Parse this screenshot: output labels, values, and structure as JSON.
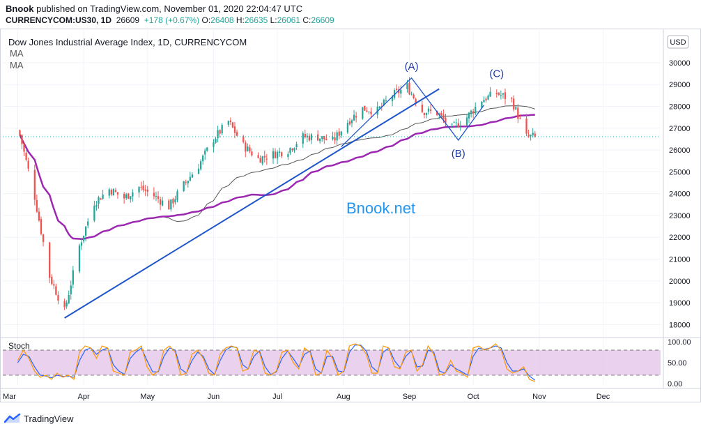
{
  "header": {
    "publisher": "Bnook",
    "published_text": "published on TradingView.com, November 01, 2020 22:04:47 UTC",
    "symbol": "CURRENCYCOM:US30, 1D",
    "price": "26609",
    "change": "+178 (+0.67%)",
    "ohlc": [
      {
        "label": "O:",
        "value": "26408"
      },
      {
        "label": "H:",
        "value": "26635"
      },
      {
        "label": "L:",
        "value": "26061"
      },
      {
        "label": "C:",
        "value": "26609"
      }
    ]
  },
  "legend": {
    "title": "Dow Jones Industrial Average Index, 1D, CURRENCYCOM",
    "ma1": "MA",
    "ma2": "MA"
  },
  "currency_badge": "USD",
  "watermark": "Bnook.net",
  "colors": {
    "up": "#26a69a",
    "down": "#ef5350",
    "trendline": "#1e55c8",
    "ma_fast": "#555555",
    "ma_slow": "#9c27b0",
    "stoch_k": "#2962ff",
    "stoch_d": "#ff9800",
    "stoch_band": "#e1bee7",
    "price_line": "#26a69a"
  },
  "footer": {
    "brand": "TradingView"
  },
  "chart_data": [
    {
      "type": "candlestick",
      "title": "Dow Jones Industrial Average Index, 1D, CURRENCYCOM",
      "y_axis_labels": [
        "18000",
        "19000",
        "20000",
        "21000",
        "22000",
        "23000",
        "24000",
        "25000",
        "26000",
        "27000",
        "28000",
        "29000",
        "30000"
      ],
      "ylim": [
        17500,
        31500
      ],
      "x_axis_labels": [
        "Mar",
        "Apr",
        "May",
        "Jun",
        "Jul",
        "Aug",
        "Sep",
        "Oct",
        "Nov",
        "Dec"
      ],
      "last_price": 26609,
      "close_series_approx": [
        {
          "date": "2020-03-02",
          "close": 26700
        },
        {
          "date": "2020-03-09",
          "close": 23850
        },
        {
          "date": "2020-03-16",
          "close": 20200
        },
        {
          "date": "2020-03-23",
          "close": 18600
        },
        {
          "date": "2020-03-30",
          "close": 21600
        },
        {
          "date": "2020-04-06",
          "close": 23600
        },
        {
          "date": "2020-04-13",
          "close": 24200
        },
        {
          "date": "2020-04-20",
          "close": 23800
        },
        {
          "date": "2020-04-27",
          "close": 24300
        },
        {
          "date": "2020-05-04",
          "close": 23900
        },
        {
          "date": "2020-05-11",
          "close": 23400
        },
        {
          "date": "2020-05-18",
          "close": 24400
        },
        {
          "date": "2020-05-25",
          "close": 25300
        },
        {
          "date": "2020-06-01",
          "close": 26500
        },
        {
          "date": "2020-06-08",
          "close": 27300
        },
        {
          "date": "2020-06-15",
          "close": 26200
        },
        {
          "date": "2020-06-22",
          "close": 25600
        },
        {
          "date": "2020-06-29",
          "close": 25800
        },
        {
          "date": "2020-07-06",
          "close": 26000
        },
        {
          "date": "2020-07-13",
          "close": 26600
        },
        {
          "date": "2020-07-20",
          "close": 26600
        },
        {
          "date": "2020-07-27",
          "close": 26400
        },
        {
          "date": "2020-08-03",
          "close": 27300
        },
        {
          "date": "2020-08-10",
          "close": 27900
        },
        {
          "date": "2020-08-17",
          "close": 27800
        },
        {
          "date": "2020-08-24",
          "close": 28500
        },
        {
          "date": "2020-08-31",
          "close": 28900
        },
        {
          "date": "2020-09-07",
          "close": 27800
        },
        {
          "date": "2020-09-14",
          "close": 27700
        },
        {
          "date": "2020-09-21",
          "close": 27000
        },
        {
          "date": "2020-09-28",
          "close": 27500
        },
        {
          "date": "2020-10-05",
          "close": 28300
        },
        {
          "date": "2020-10-12",
          "close": 28600
        },
        {
          "date": "2020-10-19",
          "close": 28300
        },
        {
          "date": "2020-10-26",
          "close": 26600
        },
        {
          "date": "2020-10-30",
          "close": 26609
        }
      ],
      "annotations": [
        {
          "label": "(A)",
          "date": "2020-09-02",
          "price": 29300
        },
        {
          "label": "(B)",
          "date": "2020-09-24",
          "price": 26450
        },
        {
          "label": "(C)",
          "date": "2020-10-12",
          "price": 28900
        }
      ],
      "trendline": [
        {
          "date": "2020-03-23",
          "price": 18300
        },
        {
          "date": "2020-09-15",
          "price": 28800
        }
      ]
    },
    {
      "type": "line",
      "title": "Stoch",
      "y_axis_labels": [
        "0.00",
        "50.00",
        "100.00"
      ],
      "ylim": [
        -5,
        105
      ],
      "bands": [
        20,
        80
      ],
      "series": [
        {
          "values_approx": [
            55,
            80,
            60,
            30,
            15,
            20,
            10,
            25,
            15,
            20,
            10,
            75,
            90,
            85,
            60,
            90,
            85,
            30,
            25,
            20,
            75,
            80,
            90,
            40,
            20,
            30,
            80,
            90,
            75,
            20,
            25,
            70,
            80,
            60,
            25,
            20,
            70,
            85,
            90,
            85,
            30,
            35,
            80,
            75,
            25,
            20,
            30,
            75,
            80,
            50,
            35,
            85,
            75,
            20,
            25,
            80,
            60,
            20,
            30,
            90,
            95,
            90,
            70,
            25,
            25,
            90,
            85,
            40,
            35,
            75,
            80,
            30,
            45,
            90,
            70,
            20,
            25,
            55,
            30,
            25,
            15,
            85,
            90,
            80,
            85,
            95,
            80,
            35,
            25,
            30,
            40,
            10,
            5
          ]
        },
        {
          "values_approx": [
            50,
            70,
            65,
            40,
            20,
            18,
            14,
            20,
            17,
            18,
            15,
            55,
            80,
            85,
            70,
            80,
            85,
            45,
            30,
            22,
            60,
            75,
            85,
            55,
            28,
            28,
            65,
            85,
            80,
            35,
            25,
            55,
            75,
            65,
            35,
            22,
            55,
            80,
            88,
            86,
            45,
            35,
            65,
            78,
            40,
            22,
            28,
            60,
            78,
            60,
            40,
            70,
            78,
            35,
            25,
            65,
            65,
            30,
            28,
            75,
            92,
            92,
            78,
            40,
            28,
            75,
            85,
            55,
            38,
            65,
            78,
            40,
            42,
            80,
            75,
            30,
            25,
            45,
            35,
            28,
            20,
            65,
            85,
            82,
            85,
            90,
            85,
            50,
            30,
            30,
            35,
            18,
            8
          ]
        }
      ]
    }
  ]
}
